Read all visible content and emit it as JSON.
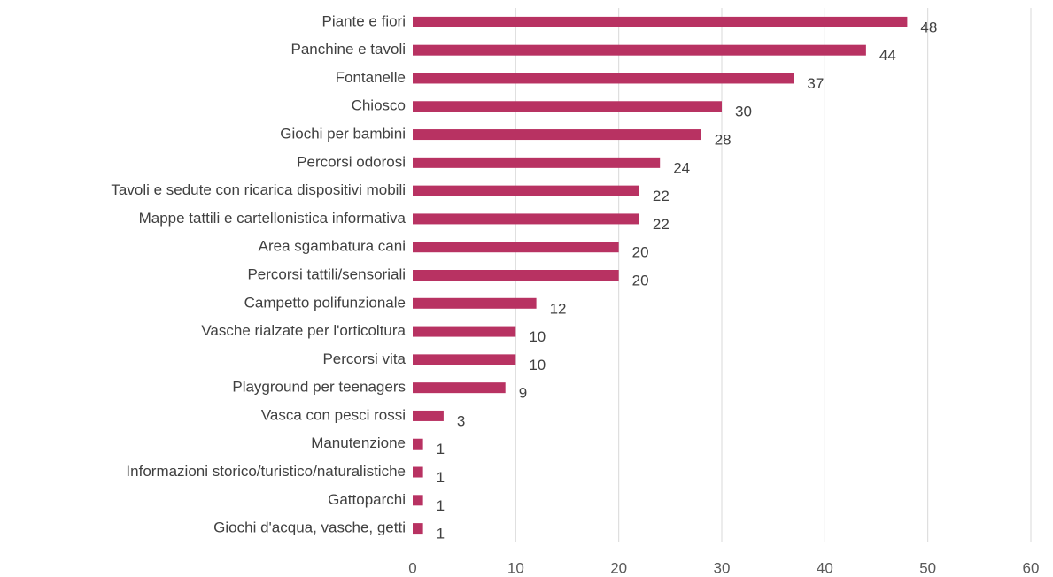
{
  "chart_data": {
    "type": "bar",
    "orientation": "horizontal",
    "categories": [
      "Piante e fiori",
      "Panchine e tavoli",
      "Fontanelle",
      "Chiosco",
      "Giochi per bambini",
      "Percorsi odorosi",
      "Tavoli e sedute con ricarica dispositivi mobili",
      "Mappe tattili e cartellonistica informativa",
      "Area sgambatura cani",
      "Percorsi tattili/sensoriali",
      "Campetto polifunzionale",
      "Vasche rialzate per l'orticoltura",
      "Percorsi vita",
      "Playground per teenagers",
      "Vasca con pesci rossi",
      "Manutenzione",
      "Informazioni storico/turistico/naturalistiche",
      "Gattoparchi",
      "Giochi d'acqua, vasche, getti"
    ],
    "values": [
      48,
      44,
      37,
      30,
      28,
      24,
      22,
      22,
      20,
      20,
      12,
      10,
      10,
      9,
      3,
      1,
      1,
      1,
      1
    ],
    "color": "#b83262",
    "xlim": [
      0,
      60
    ],
    "xticks": [
      0,
      10,
      20,
      30,
      40,
      50,
      60
    ],
    "grid": true
  }
}
